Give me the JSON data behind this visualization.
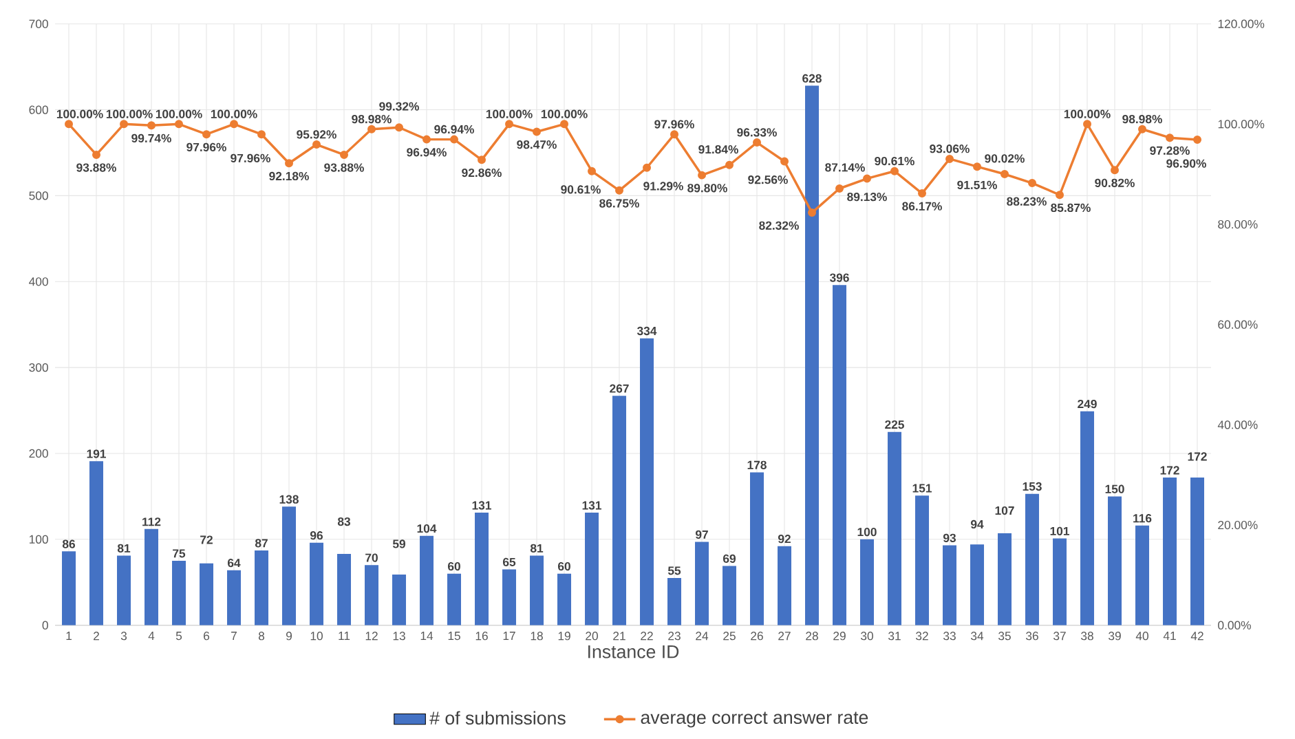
{
  "chart_data": {
    "type": "bar",
    "xlabel": "Instance ID",
    "categories": [
      "1",
      "2",
      "3",
      "4",
      "5",
      "6",
      "7",
      "8",
      "9",
      "10",
      "11",
      "12",
      "13",
      "14",
      "15",
      "16",
      "17",
      "18",
      "19",
      "20",
      "21",
      "22",
      "23",
      "24",
      "25",
      "26",
      "27",
      "28",
      "29",
      "30",
      "31",
      "32",
      "33",
      "34",
      "35",
      "36",
      "37",
      "38",
      "39",
      "40",
      "41",
      "42"
    ],
    "series": [
      {
        "name": "# of submissions",
        "color": "#4472c4",
        "values": [
          86,
          191,
          81,
          112,
          75,
          72,
          64,
          87,
          138,
          96,
          83,
          70,
          59,
          104,
          60,
          131,
          65,
          81,
          60,
          131,
          267,
          334,
          55,
          97,
          69,
          178,
          92,
          628,
          396,
          100,
          225,
          151,
          93,
          94,
          107,
          153,
          101,
          249,
          150,
          116,
          172,
          172
        ]
      },
      {
        "name": "average correct answer rate",
        "type": "line",
        "axis": "y2",
        "color": "#ed7d31",
        "values": [
          100.0,
          93.88,
          100.0,
          99.74,
          100.0,
          97.96,
          100.0,
          97.96,
          92.18,
          95.92,
          93.88,
          98.98,
          99.32,
          96.94,
          96.94,
          92.86,
          100.0,
          98.47,
          100.0,
          90.61,
          86.75,
          91.29,
          97.96,
          89.8,
          91.84,
          96.33,
          92.56,
          82.32,
          87.14,
          89.13,
          90.61,
          86.17,
          93.06,
          91.51,
          90.02,
          88.23,
          85.87,
          100.0,
          90.82,
          98.98,
          97.28,
          96.9
        ],
        "value_labels": [
          "100.00%",
          "93.88%",
          "100.00%",
          "99.74%",
          "100.00%",
          "97.96%",
          "100.00%",
          "97.96%",
          "92.18%",
          "95.92%",
          "93.88%",
          "98.98%",
          "99.32%",
          "96.94%",
          "96.94%",
          "92.86%",
          "100.00%",
          "98.47%",
          "100.00%",
          "90.61%",
          "86.75%",
          "91.29%",
          "97.96%",
          "89.80%",
          "91.84%",
          "96.33%",
          "92.56%",
          "82.32%",
          "87.14%",
          "89.13%",
          "90.61%",
          "86.17%",
          "93.06%",
          "91.51%",
          "90.02%",
          "88.23%",
          "85.87%",
          "100.00%",
          "90.82%",
          "98.98%",
          "97.28%",
          "96.90%"
        ]
      }
    ],
    "ylim": [
      0,
      700
    ],
    "yticks": [
      0,
      100,
      200,
      300,
      400,
      500,
      600,
      700
    ],
    "y2lim": [
      0,
      120
    ],
    "y2ticks": [
      {
        "value": 0,
        "label": "0.00%"
      },
      {
        "value": 20,
        "label": "20.00%"
      },
      {
        "value": 40,
        "label": "40.00%"
      },
      {
        "value": 60,
        "label": "60.00%"
      },
      {
        "value": 80,
        "label": "80.00%"
      },
      {
        "value": 100,
        "label": "100.00%"
      },
      {
        "value": 120,
        "label": "120.00%"
      }
    ],
    "grid": true,
    "legend": "bottom",
    "data_labels": true,
    "marker": "circle",
    "line_style": "solid"
  }
}
